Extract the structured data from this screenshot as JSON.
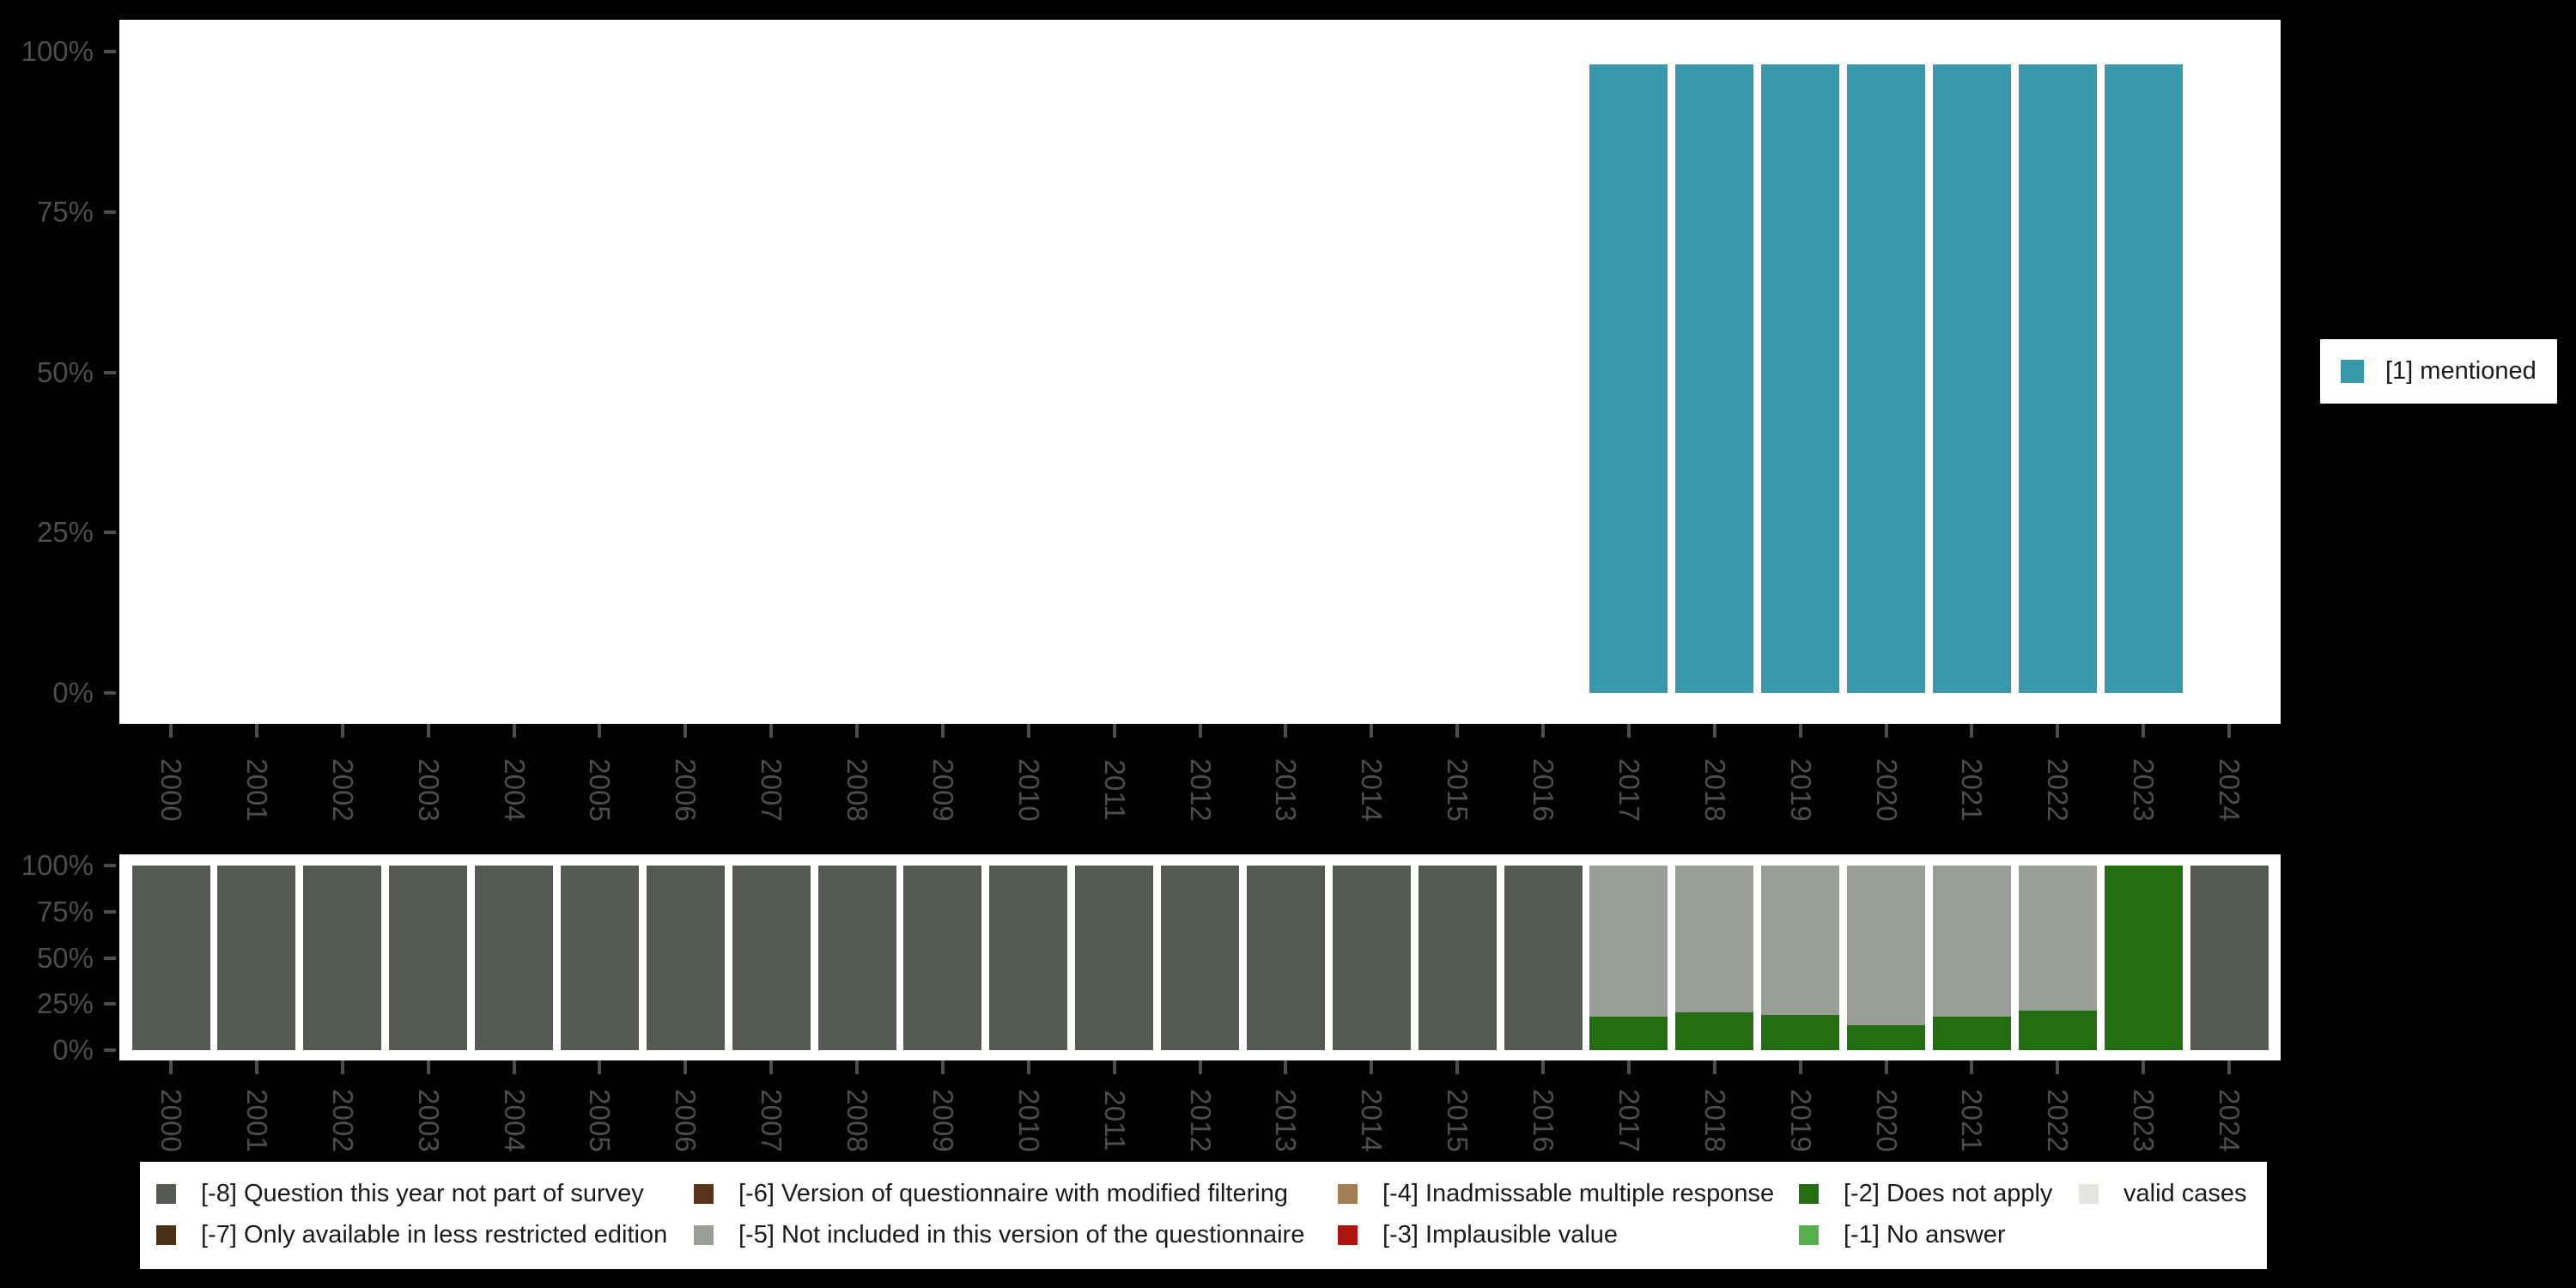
{
  "colors": {
    "background": "#000000",
    "panel": "#ffffff",
    "axis_text": "#4d4d4d",
    "legend_text": "#1a1a1a"
  },
  "chart_data": [
    {
      "id": "top-distribution",
      "type": "bar",
      "title": "",
      "xlabel": "",
      "ylabel": "",
      "categories": [
        "2000",
        "2001",
        "2002",
        "2003",
        "2004",
        "2005",
        "2006",
        "2007",
        "2008",
        "2009",
        "2010",
        "2011",
        "2012",
        "2013",
        "2014",
        "2015",
        "2016",
        "2017",
        "2018",
        "2019",
        "2020",
        "2021",
        "2022",
        "2023",
        "2024"
      ],
      "x_tick_rotation": 90,
      "ylim": [
        0,
        100
      ],
      "grid": false,
      "legend_position": "right",
      "yticks": [
        {
          "label": "0%",
          "value": 0
        },
        {
          "label": "25%",
          "value": 25
        },
        {
          "label": "50%",
          "value": 50
        },
        {
          "label": "75%",
          "value": 75
        },
        {
          "label": "100%",
          "value": 100
        }
      ],
      "series": [
        {
          "name": "[1] mentioned",
          "color": "#3a98ad",
          "values": [
            null,
            null,
            null,
            null,
            null,
            null,
            null,
            null,
            null,
            null,
            null,
            null,
            null,
            null,
            null,
            null,
            null,
            98,
            98,
            98,
            98,
            98,
            98,
            98,
            null
          ]
        }
      ]
    },
    {
      "id": "bottom-missing-values",
      "type": "bar",
      "stacked": true,
      "title": "",
      "xlabel": "",
      "ylabel": "",
      "categories": [
        "2000",
        "2001",
        "2002",
        "2003",
        "2004",
        "2005",
        "2006",
        "2007",
        "2008",
        "2009",
        "2010",
        "2011",
        "2012",
        "2013",
        "2014",
        "2015",
        "2016",
        "2017",
        "2018",
        "2019",
        "2020",
        "2021",
        "2022",
        "2023",
        "2024"
      ],
      "x_tick_rotation": 90,
      "ylim": [
        0,
        100
      ],
      "grid": false,
      "legend_position": "bottom",
      "yticks": [
        {
          "label": "0%",
          "value": 0
        },
        {
          "label": "25%",
          "value": 25
        },
        {
          "label": "50%",
          "value": 50
        },
        {
          "label": "75%",
          "value": 75
        },
        {
          "label": "100%",
          "value": 100
        }
      ],
      "series": [
        {
          "name": "[-2] Does not apply",
          "color": "#226e10",
          "values": [
            0,
            0,
            0,
            0,
            0,
            0,
            0,
            0,
            0,
            0,
            0,
            0,
            0,
            0,
            0,
            0,
            0,
            18,
            20.5,
            19,
            13.5,
            18,
            21.5,
            100,
            0
          ]
        },
        {
          "name": "[-5] Not included in this version of the questionnaire",
          "color": "#989d95",
          "values": [
            0,
            0,
            0,
            0,
            0,
            0,
            0,
            0,
            0,
            0,
            0,
            0,
            0,
            0,
            0,
            0,
            0,
            82,
            79.5,
            81,
            86.5,
            82,
            78.5,
            0,
            0
          ]
        },
        {
          "name": "[-8] Question this year not part of survey",
          "color": "#555b53",
          "values": [
            100,
            100,
            100,
            100,
            100,
            100,
            100,
            100,
            100,
            100,
            100,
            100,
            100,
            100,
            100,
            100,
            100,
            0,
            0,
            0,
            0,
            0,
            0,
            0,
            100
          ]
        }
      ]
    }
  ],
  "legends": {
    "top": {
      "items": [
        {
          "label": "[1] mentioned",
          "color": "#3a98ad"
        }
      ]
    },
    "bottom": {
      "items": [
        {
          "label": "[-8] Question this year not part of survey",
          "color": "#555b53"
        },
        {
          "label": "[-7] Only available in less restricted edition",
          "color": "#4a3118"
        },
        {
          "label": "[-6] Version of questionnaire with modified filtering",
          "color": "#57341a"
        },
        {
          "label": "[-5] Not included in this version of the questionnaire",
          "color": "#989d95"
        },
        {
          "label": "[-4] Inadmissable multiple response",
          "color": "#a37e53"
        },
        {
          "label": "[-3] Implausible value",
          "color": "#ae150f"
        },
        {
          "label": "[-2] Does not apply",
          "color": "#226e10"
        },
        {
          "label": "[-1] No answer",
          "color": "#57b14b"
        },
        {
          "label": "valid cases",
          "color": "#e3e7df"
        }
      ]
    }
  }
}
